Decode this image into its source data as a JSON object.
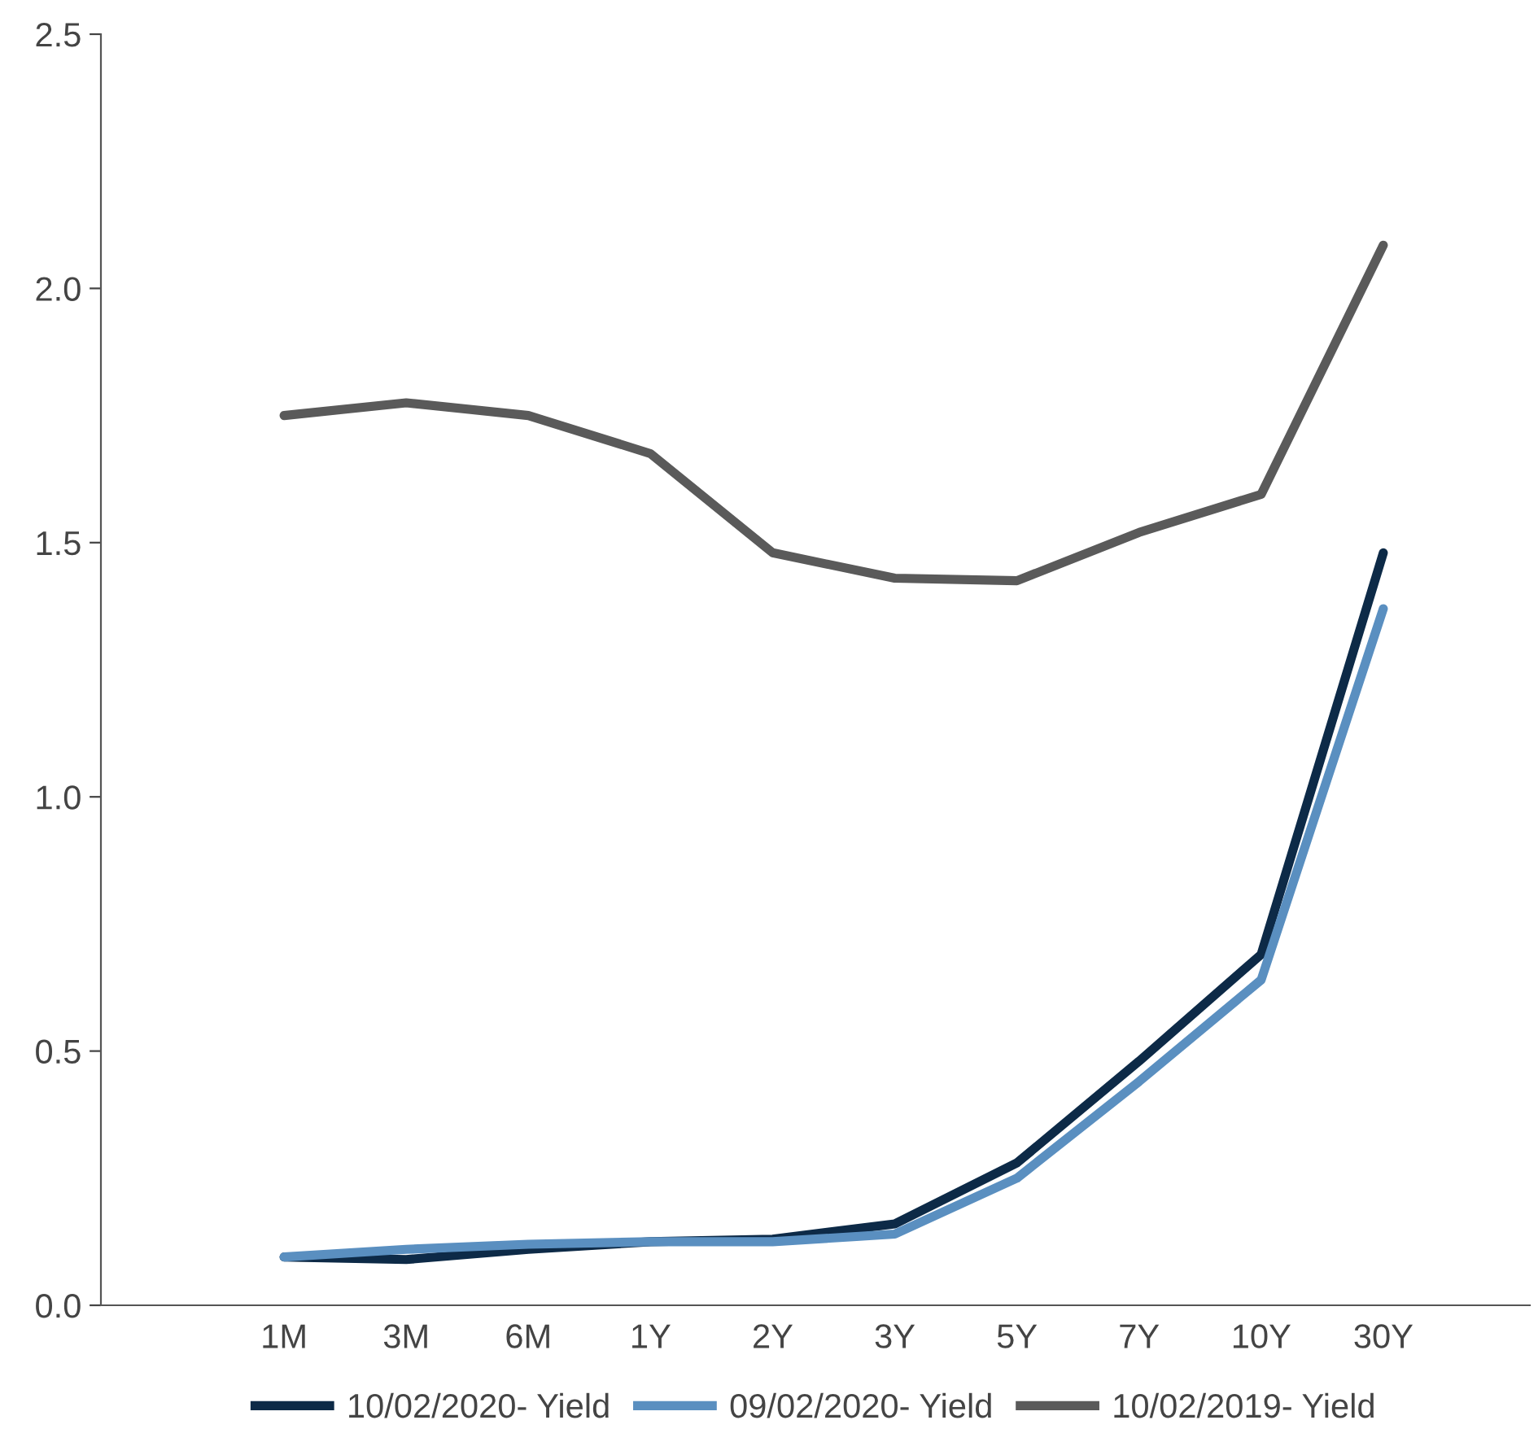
{
  "chart_data": {
    "type": "line",
    "categories": [
      "1M",
      "3M",
      "6M",
      "1Y",
      "2Y",
      "3Y",
      "5Y",
      "7Y",
      "10Y",
      "30Y"
    ],
    "ylim": [
      0,
      2.5
    ],
    "yticks": [
      {
        "value": 0,
        "label": "0.0"
      },
      {
        "value": 0.5,
        "label": "0.5"
      },
      {
        "value": 1,
        "label": "1.0"
      },
      {
        "value": 1.5,
        "label": "1.5"
      },
      {
        "value": 2,
        "label": "2.0"
      },
      {
        "value": 2.5,
        "label": "2.5"
      }
    ],
    "series": [
      {
        "name": "10/02/2020- Yield",
        "color": "#0d2a47",
        "values": [
          0.095,
          0.09,
          0.11,
          0.125,
          0.13,
          0.16,
          0.28,
          0.48,
          0.69,
          1.48
        ]
      },
      {
        "name": "09/02/2020- Yield",
        "color": "#5a8fc0",
        "values": [
          0.095,
          0.11,
          0.12,
          0.125,
          0.125,
          0.14,
          0.25,
          0.44,
          0.64,
          1.37
        ]
      },
      {
        "name": "10/02/2019- Yield",
        "color": "#5a5a5a",
        "values": [
          1.75,
          1.775,
          1.75,
          1.675,
          1.48,
          1.43,
          1.425,
          1.52,
          1.595,
          2.085
        ]
      }
    ],
    "legend": "bottom",
    "grid": false,
    "marker": "none",
    "line_style": "solid"
  }
}
